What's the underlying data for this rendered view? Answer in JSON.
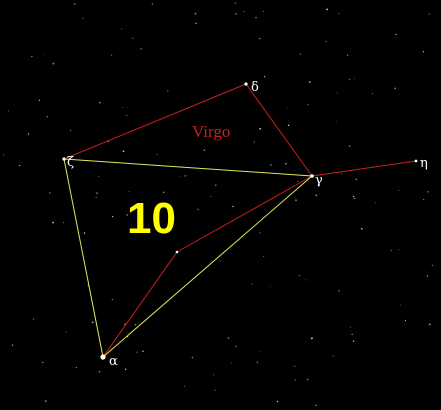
{
  "constellation_name": "Virgo",
  "pattern_number": "10",
  "stars": {
    "delta": "δ",
    "zeta": "ζ",
    "gamma": "γ",
    "eta": "η",
    "alpha": "α"
  },
  "colors": {
    "background": "#000000",
    "constellation_lines": "#cc1f1f",
    "asterism_lines": "#e6e65a",
    "number": "#ffff00",
    "labels": "#ffffff"
  }
}
